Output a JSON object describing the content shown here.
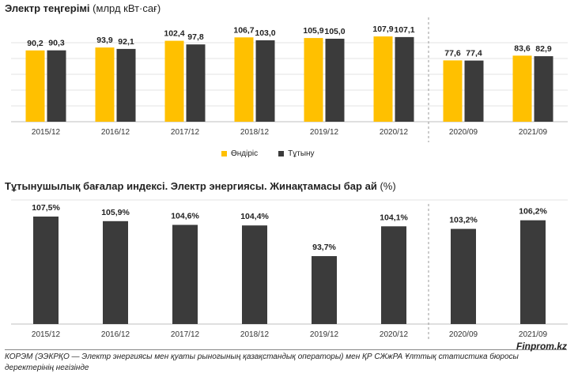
{
  "colors": {
    "production": "#FFC000",
    "consumption": "#3B3B3B",
    "cpi": "#3B3B3B"
  },
  "chart_data": [
    {
      "type": "bar",
      "title": "Электр теңгерімі",
      "unit": "(млрд кВт·сағ)",
      "categories": [
        "2015/12",
        "2016/12",
        "2017/12",
        "2018/12",
        "2019/12",
        "2020/12",
        "2020/09",
        "2021/09"
      ],
      "series": [
        {
          "name": "Өндіріс",
          "values": [
            90.2,
            93.9,
            102.4,
            106.7,
            105.9,
            107.9,
            77.6,
            83.6
          ],
          "labels": [
            "90,2",
            "93,9",
            "102,4",
            "106,7",
            "105,9",
            "107,9",
            "77,6",
            "83,6"
          ]
        },
        {
          "name": "Тұтыну",
          "values": [
            90.3,
            92.1,
            97.8,
            103.0,
            105.0,
            107.1,
            77.4,
            82.9
          ],
          "labels": [
            "90,3",
            "92,1",
            "97,8",
            "103,0",
            "105,0",
            "107,1",
            "77,4",
            "82,9"
          ]
        }
      ],
      "legend": "bottom-center",
      "separator_after_index": 5
    },
    {
      "type": "bar",
      "title": "Тұтынушылық бағалар индексі. Электр энергиясы. Жинақтамасы бар ай",
      "unit": "(%)",
      "categories": [
        "2015/12",
        "2016/12",
        "2017/12",
        "2018/12",
        "2019/12",
        "2020/12",
        "2020/09",
        "2021/09"
      ],
      "values": [
        107.5,
        105.9,
        104.6,
        104.4,
        93.7,
        104.1,
        103.2,
        106.2
      ],
      "labels": [
        "107,5%",
        "105,9%",
        "104,6%",
        "104,4%",
        "93,7%",
        "104,1%",
        "103,2%",
        "106,2%"
      ],
      "separator_after_index": 5
    }
  ],
  "brand": "Finprom.kz",
  "footnote": "КОРЭМ (ЭЭКРҚО — Электр энергиясы мен қуаты рыногының қазақстандық операторы) мен ҚР СЖжРА Ұлттық статистика бюросы деректерінің негізінде"
}
